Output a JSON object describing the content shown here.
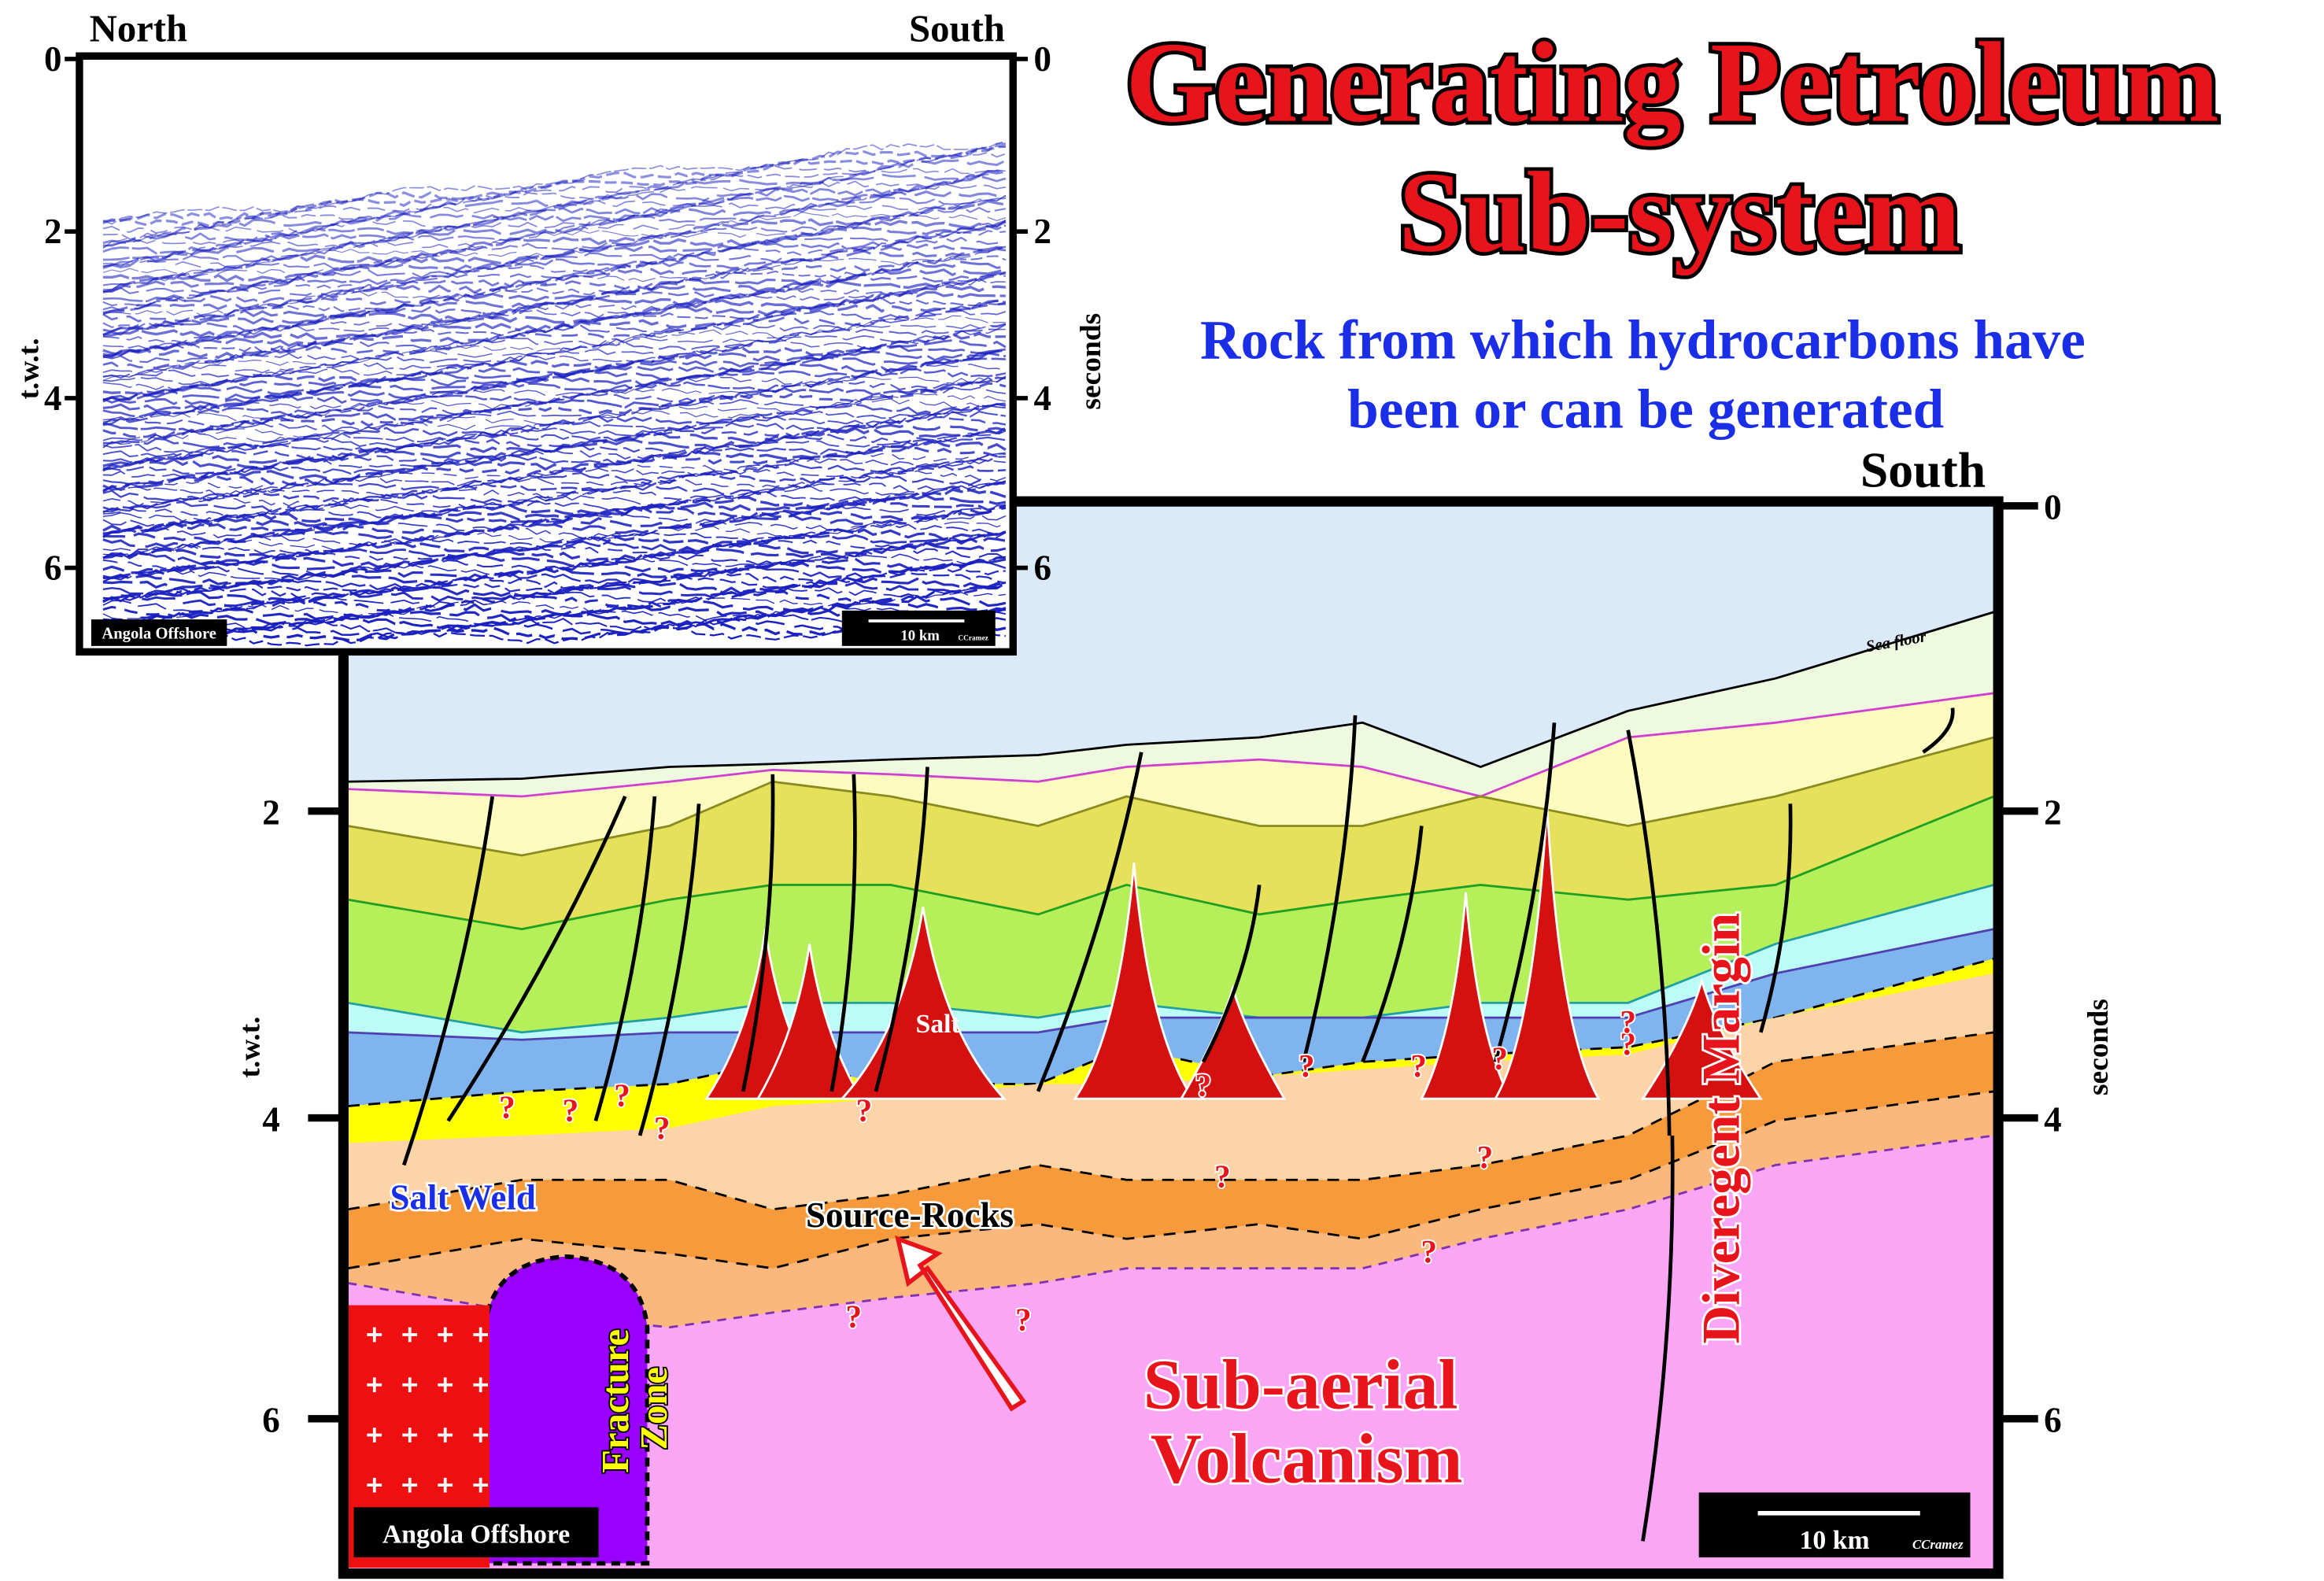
{
  "seismic": {
    "north": "North",
    "south": "South",
    "left_ticks": [
      "0",
      "2",
      "4",
      "6"
    ],
    "right_ticks": [
      "0",
      "2",
      "4",
      "6"
    ],
    "left_axis": "t.w.t.",
    "right_axis": "seconds",
    "location": "Angola Offshore",
    "scale": "10 km",
    "credit": "CCramez"
  },
  "title": {
    "lines": [
      "Generating Petroleum",
      "Sub-system"
    ]
  },
  "subtitle": {
    "lines": [
      "Rock from which hydrocarbons have",
      "been or can be generated"
    ]
  },
  "section": {
    "south": "South",
    "left_ticks": [
      "2",
      "4",
      "6"
    ],
    "right_ticks": [
      "0",
      "2",
      "4",
      "6"
    ],
    "left_axis": "t.w.t.",
    "right_axis": "seconds",
    "labels": {
      "sea_floor": "Sea floor",
      "salt": "Salt",
      "salt_weld": "Salt Weld",
      "source_rocks": "Source-Rocks",
      "fracture_zone": [
        "Fracture",
        "Zone"
      ],
      "volcanism": [
        "Sub-aerial",
        "Volcanism"
      ],
      "margin": "Diveregent Margin"
    },
    "question": "?",
    "location": "Angola Offshore",
    "scale": "10 km",
    "credit": "CCramez"
  }
}
